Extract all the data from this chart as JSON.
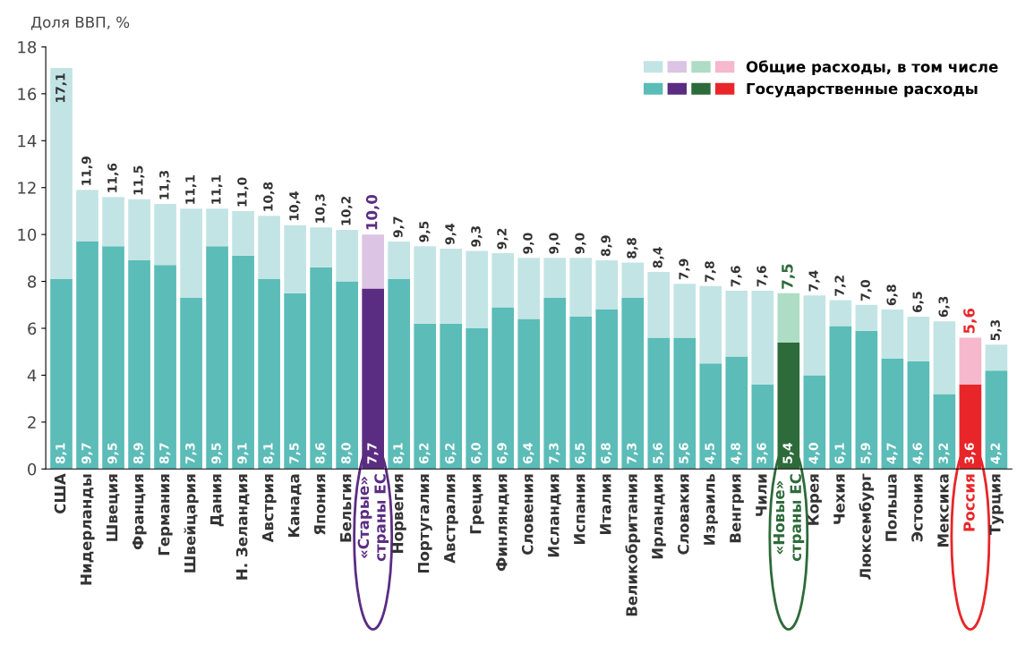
{
  "chart_data": {
    "type": "bar",
    "stacked": true,
    "ylabel": "Доля ВВП, %",
    "ylim": [
      0,
      18
    ],
    "yticks": [
      0,
      2,
      4,
      6,
      8,
      10,
      12,
      14,
      16,
      18
    ],
    "grid": false,
    "legend": "top right",
    "categories": [
      "США",
      "Нидерланды",
      "Швеция",
      "Франция",
      "Германия",
      "Швейцария",
      "Дания",
      "Н. Зеландия",
      "Австрия",
      "Канада",
      "Япония",
      "Бельгия",
      "«Старые»\nстраны ЕС",
      "Норвегия",
      "Португалия",
      "Австралия",
      "Греция",
      "Финляндия",
      "Словения",
      "Исландия",
      "Испания",
      "Италия",
      "Великобритания",
      "Ирландия",
      "Словакия",
      "Израиль",
      "Венгрия",
      "Чили",
      "«Новые»\nстраны ЕС",
      "Корея",
      "Чехия",
      "Люксембург",
      "Польша",
      "Эстония",
      "Мексика",
      "Россия",
      "Турция"
    ],
    "series": [
      {
        "name": "Государственные расходы",
        "color": "#5bbcb8",
        "colors": [
          "#5bbcb8",
          "#5bbcb8",
          "#5bbcb8",
          "#5bbcb8",
          "#5bbcb8",
          "#5bbcb8",
          "#5bbcb8",
          "#5bbcb8",
          "#5bbcb8",
          "#5bbcb8",
          "#5bbcb8",
          "#5bbcb8",
          "#5b2d82",
          "#5bbcb8",
          "#5bbcb8",
          "#5bbcb8",
          "#5bbcb8",
          "#5bbcb8",
          "#5bbcb8",
          "#5bbcb8",
          "#5bbcb8",
          "#5bbcb8",
          "#5bbcb8",
          "#5bbcb8",
          "#5bbcb8",
          "#5bbcb8",
          "#5bbcb8",
          "#5bbcb8",
          "#2e6b3a",
          "#5bbcb8",
          "#5bbcb8",
          "#5bbcb8",
          "#5bbcb8",
          "#5bbcb8",
          "#5bbcb8",
          "#e8262a",
          "#5bbcb8"
        ],
        "values": [
          8.1,
          9.7,
          9.5,
          8.9,
          8.7,
          7.3,
          9.5,
          9.1,
          8.1,
          7.5,
          8.6,
          8.0,
          7.7,
          8.1,
          6.2,
          6.2,
          6.0,
          6.9,
          6.4,
          7.3,
          6.5,
          6.8,
          7.3,
          5.6,
          5.6,
          4.5,
          4.8,
          3.6,
          5.4,
          4.0,
          6.1,
          5.9,
          4.7,
          4.6,
          3.2,
          3.6,
          4.2
        ],
        "value_labels": [
          "8,1",
          "9,7",
          "9,5",
          "8,9",
          "8,7",
          "7,3",
          "9,5",
          "9,1",
          "8,1",
          "7,5",
          "8,6",
          "8,0",
          "7,7",
          "8,1",
          "6,2",
          "6,2",
          "6,0",
          "6,9",
          "6,4",
          "7,3",
          "6,5",
          "6,8",
          "7,3",
          "5,6",
          "5,6",
          "4,5",
          "4,8",
          "3,6",
          "5,4",
          "4,0",
          "6,1",
          "5,9",
          "4,7",
          "4,6",
          "3,2",
          "3,6",
          "4,2"
        ]
      },
      {
        "name": "Общие расходы, в том числе",
        "color": "#c3e4e4",
        "colors": [
          "#c3e4e4",
          "#c3e4e4",
          "#c3e4e4",
          "#c3e4e4",
          "#c3e4e4",
          "#c3e4e4",
          "#c3e4e4",
          "#c3e4e4",
          "#c3e4e4",
          "#c3e4e4",
          "#c3e4e4",
          "#c3e4e4",
          "#dcc4e4",
          "#c3e4e4",
          "#c3e4e4",
          "#c3e4e4",
          "#c3e4e4",
          "#c3e4e4",
          "#c3e4e4",
          "#c3e4e4",
          "#c3e4e4",
          "#c3e4e4",
          "#c3e4e4",
          "#c3e4e4",
          "#c3e4e4",
          "#c3e4e4",
          "#c3e4e4",
          "#c3e4e4",
          "#aedcc4",
          "#c3e4e4",
          "#c3e4e4",
          "#c3e4e4",
          "#c3e4e4",
          "#c3e4e4",
          "#c3e4e4",
          "#f5b8cc",
          "#c3e4e4"
        ],
        "values": [
          9.0,
          2.2,
          2.1,
          2.6,
          2.6,
          3.8,
          1.6,
          1.9,
          2.7,
          2.9,
          1.7,
          2.2,
          2.3,
          1.6,
          3.3,
          3.2,
          3.3,
          2.3,
          2.6,
          1.7,
          2.5,
          2.1,
          1.5,
          2.8,
          2.3,
          3.3,
          2.8,
          4.0,
          2.1,
          3.4,
          1.1,
          1.1,
          2.1,
          1.9,
          3.1,
          2.0,
          1.1
        ]
      }
    ],
    "totals": [
      "17,1",
      "11,9",
      "11,6",
      "11,5",
      "11,3",
      "11,1",
      "11,1",
      "11,0",
      "10,8",
      "10,4",
      "10,3",
      "10,2",
      "10,0",
      "9,7",
      "9,5",
      "9,4",
      "9,3",
      "9,2",
      "9,0",
      "9,0",
      "9,0",
      "8,9",
      "8,8",
      "8,4",
      "7,9",
      "7,8",
      "7,6",
      "7,6",
      "7,5",
      "7,4",
      "7,2",
      "7,0",
      "6,8",
      "6,5",
      "6,3",
      "5,6",
      "5,3"
    ]
  }
}
